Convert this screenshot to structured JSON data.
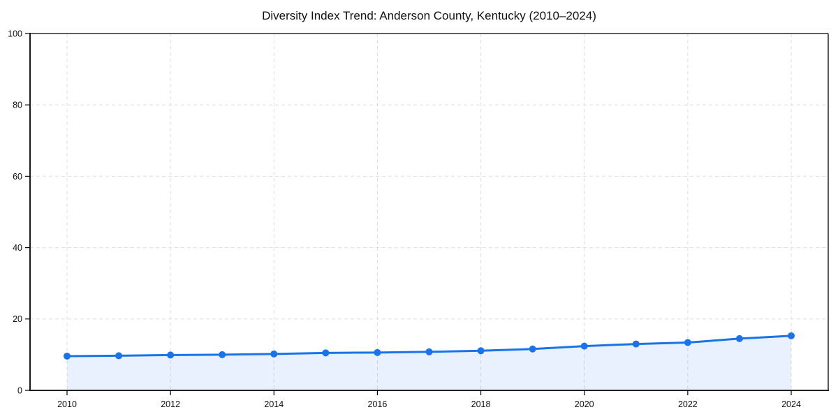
{
  "chart_data": {
    "type": "area",
    "title": "Diversity Index Trend: Anderson County, Kentucky (2010–2024)",
    "xlabel": "",
    "ylabel": "",
    "x": [
      2010,
      2011,
      2012,
      2013,
      2014,
      2015,
      2016,
      2017,
      2018,
      2019,
      2020,
      2021,
      2022,
      2023,
      2024
    ],
    "series": [
      {
        "name": "Diversity Index",
        "values": [
          9.6,
          9.7,
          9.9,
          10.0,
          10.2,
          10.5,
          10.6,
          10.8,
          11.1,
          11.6,
          12.4,
          13.0,
          13.4,
          14.5,
          15.3
        ]
      }
    ],
    "xticks": [
      2010,
      2012,
      2014,
      2016,
      2018,
      2020,
      2022,
      2024
    ],
    "yticks": [
      0,
      20,
      40,
      60,
      80,
      100
    ],
    "ylim": [
      0,
      100
    ],
    "grid": true,
    "legend": "none",
    "colors": {
      "line": "#1a73e8",
      "marker": "#1a73e8",
      "fill": "rgba(26,115,232,0.10)",
      "gridline": "#dedede",
      "spine": "#000000",
      "tick_label": "#111111",
      "background": "#ffffff"
    }
  }
}
